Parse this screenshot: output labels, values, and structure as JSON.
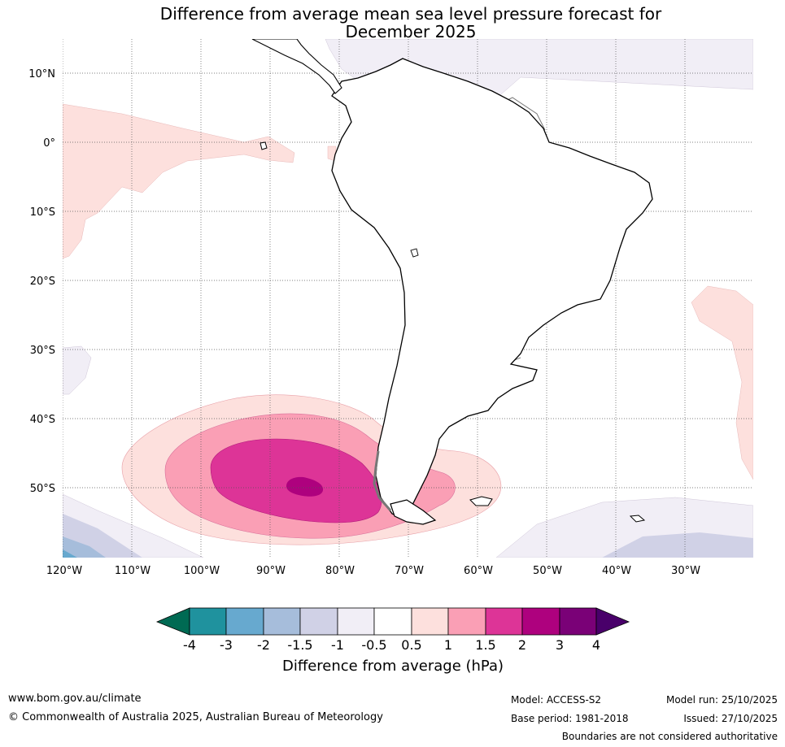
{
  "title_line1": "Difference from average mean sea level pressure forecast for",
  "title_line2": "December 2025",
  "lat_labels": [
    "10°N",
    "0°",
    "10°S",
    "20°S",
    "30°S",
    "40°S",
    "50°S"
  ],
  "lon_labels": [
    "120°W",
    "110°W",
    "100°W",
    "90°W",
    "80°W",
    "70°W",
    "60°W",
    "50°W",
    "40°W",
    "30°W"
  ],
  "colorbar": {
    "tick_labels": [
      "-4",
      "-3",
      "-2",
      "-1.5",
      "-1",
      "-0.5",
      "0.5",
      "1",
      "1.5",
      "2",
      "3",
      "4"
    ],
    "colors": [
      "#006a53",
      "#1f929e",
      "#67a9cf",
      "#a6bddb",
      "#d0d1e6",
      "#f1eef6",
      "#ffffff",
      "#fde0dd",
      "#fa9fb5",
      "#dd3497",
      "#ae017e",
      "#7a0177",
      "#49006a"
    ],
    "label": "Difference from average (hPa)"
  },
  "footer": {
    "website": "www.bom.gov.au/climate",
    "copyright": "© Commonwealth of Australia 2025, Australian Bureau of Meteorology",
    "model": "Model: ACCESS-S2",
    "base_period": "Base period: 1981-2018",
    "model_run": "Model run: 25/10/2025",
    "issued": "Issued: 27/10/2025",
    "disclaimer": "Boundaries are not considered authoritative"
  }
}
